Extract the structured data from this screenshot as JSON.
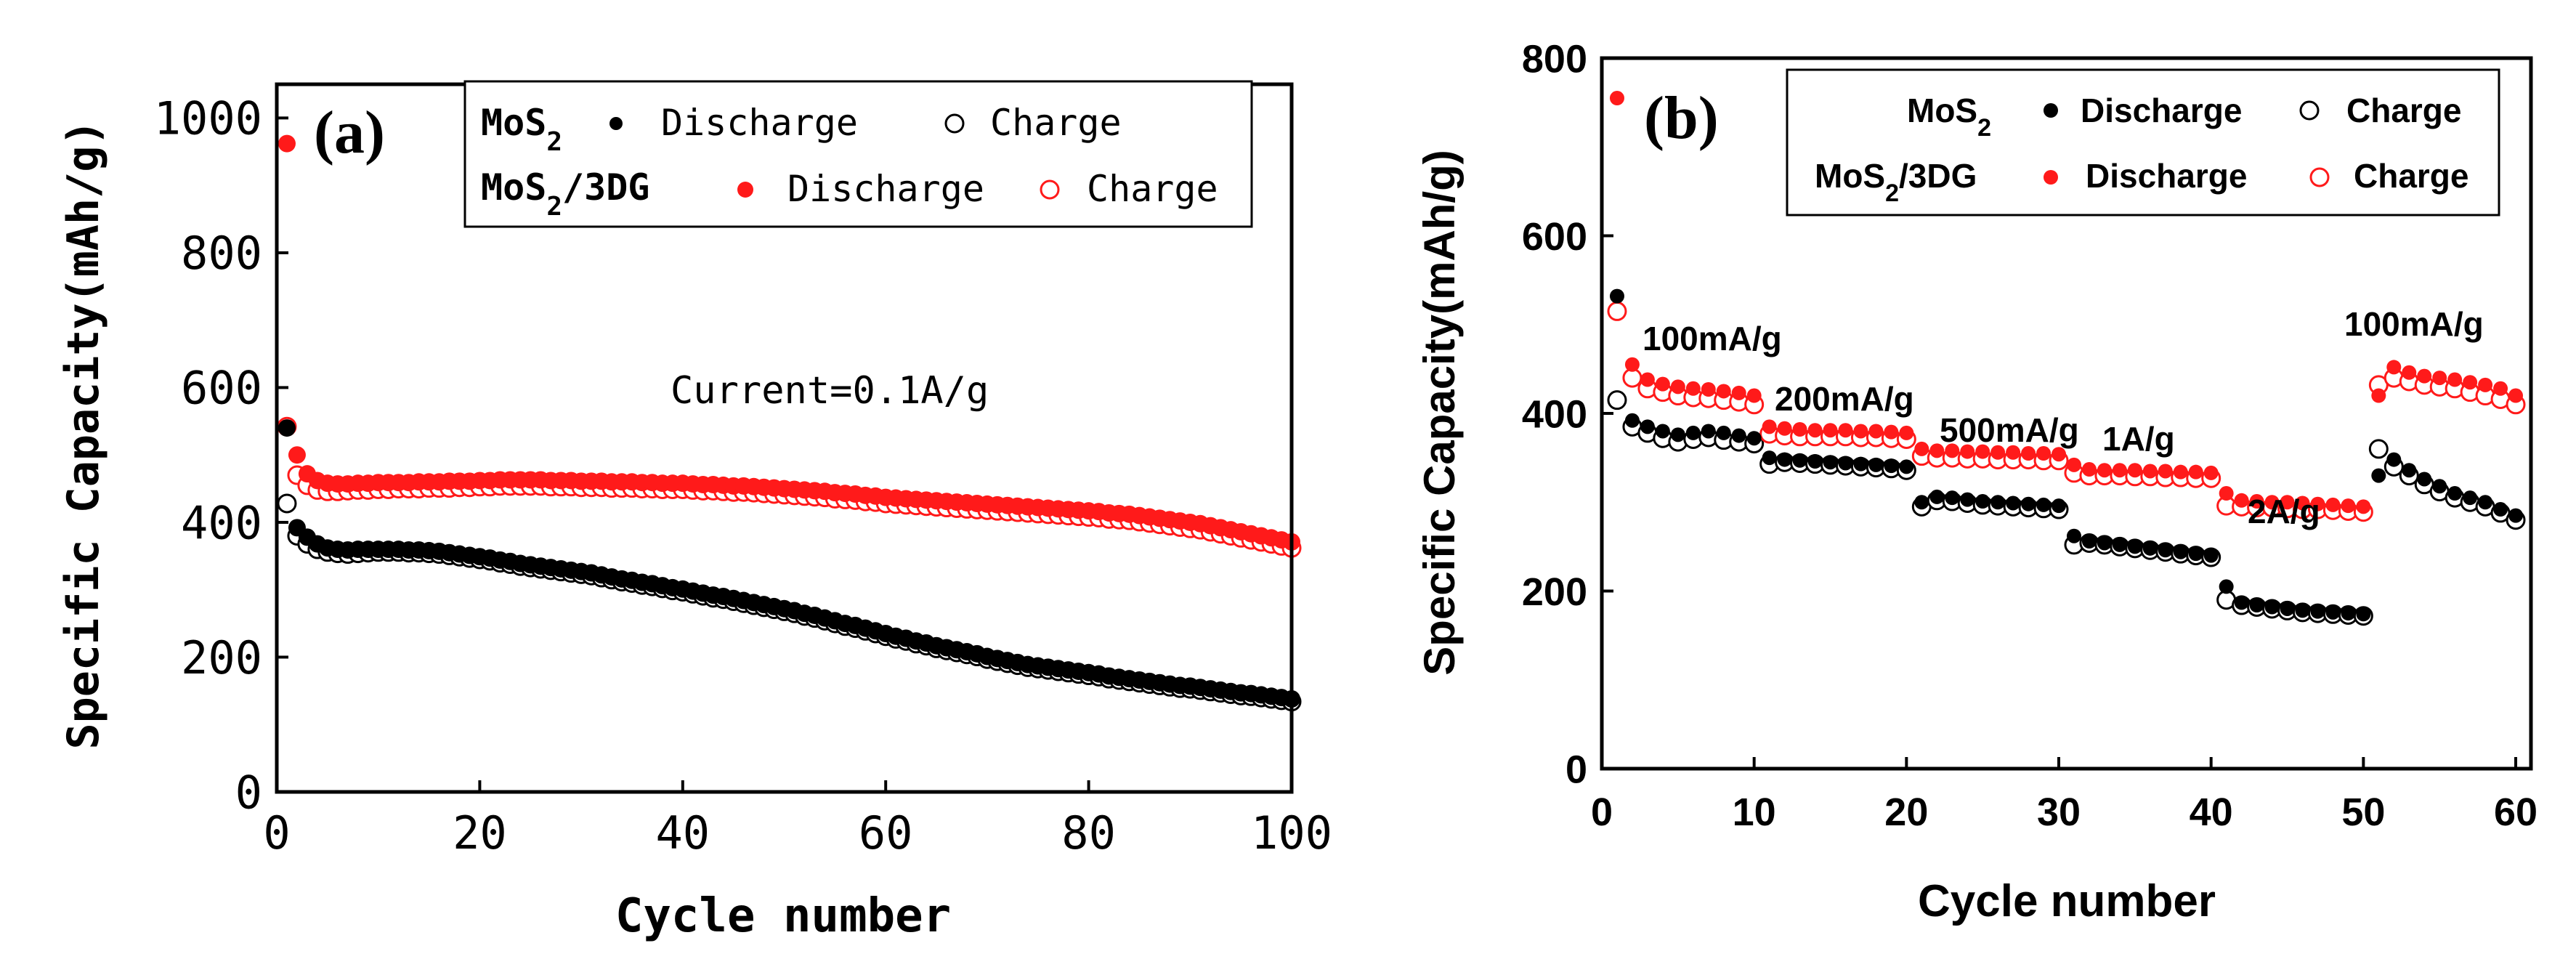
{
  "colors": {
    "mos2": "#000000",
    "mos2_3dg": "#ff1a1a",
    "axis": "#000000"
  },
  "chart_data": [
    {
      "type": "scatter",
      "panel_label": "(a)",
      "xlabel": "Cycle number",
      "ylabel": "Specific Capacity(mAh/g)",
      "xlim": [
        0,
        100
      ],
      "ylim": [
        0,
        1050
      ],
      "xticks": [
        "0",
        "20",
        "40",
        "60",
        "80",
        "100"
      ],
      "yticks": [
        "0",
        "200",
        "400",
        "600",
        "800",
        "1000"
      ],
      "annotations": [
        "Current=0.1A/g"
      ],
      "legend": {
        "placement": "top-right",
        "rows": [
          {
            "material": "MoS",
            "sub": "2",
            "rest": "",
            "discharge": "Discharge",
            "charge": "Charge"
          },
          {
            "material": "MoS",
            "sub": "2",
            "rest": "/3DG",
            "discharge": "Discharge",
            "charge": "Charge"
          }
        ]
      },
      "grid": false,
      "x": [
        1,
        2,
        3,
        4,
        5,
        6,
        7,
        8,
        9,
        10,
        11,
        12,
        13,
        14,
        15,
        16,
        17,
        18,
        19,
        20,
        21,
        22,
        23,
        24,
        25,
        26,
        27,
        28,
        29,
        30,
        31,
        32,
        33,
        34,
        35,
        36,
        37,
        38,
        39,
        40,
        41,
        42,
        43,
        44,
        45,
        46,
        47,
        48,
        49,
        50,
        51,
        52,
        53,
        54,
        55,
        56,
        57,
        58,
        59,
        60,
        61,
        62,
        63,
        64,
        65,
        66,
        67,
        68,
        69,
        70,
        71,
        72,
        73,
        74,
        75,
        76,
        77,
        78,
        79,
        80,
        81,
        82,
        83,
        84,
        85,
        86,
        87,
        88,
        89,
        90,
        91,
        92,
        93,
        94,
        95,
        96,
        97,
        98,
        99,
        100
      ],
      "series": [
        {
          "name": "MoS2 Discharge",
          "material": "MoS2",
          "mode": "discharge",
          "values": [
            540,
            392,
            378,
            368,
            362,
            360,
            359,
            360,
            360,
            360,
            360,
            360,
            359,
            359,
            358,
            357,
            355,
            353,
            351,
            349,
            347,
            344,
            342,
            339,
            337,
            335,
            333,
            331,
            329,
            327,
            325,
            322,
            319,
            316,
            314,
            311,
            309,
            306,
            303,
            301,
            298,
            295,
            292,
            290,
            287,
            284,
            281,
            278,
            275,
            272,
            269,
            265,
            262,
            258,
            254,
            250,
            247,
            243,
            239,
            235,
            231,
            228,
            224,
            221,
            217,
            214,
            211,
            208,
            205,
            201,
            198,
            195,
            192,
            189,
            187,
            185,
            183,
            181,
            179,
            177,
            175,
            172,
            170,
            168,
            166,
            164,
            162,
            160,
            158,
            157,
            155,
            153,
            151,
            149,
            147,
            146,
            144,
            142,
            140,
            138
          ]
        },
        {
          "name": "MoS2 Charge",
          "material": "MoS2",
          "mode": "charge",
          "values": [
            428,
            380,
            368,
            360,
            356,
            354,
            353,
            354,
            355,
            356,
            356,
            356,
            355,
            355,
            354,
            353,
            351,
            349,
            347,
            345,
            343,
            340,
            338,
            335,
            333,
            331,
            329,
            327,
            325,
            323,
            321,
            318,
            315,
            312,
            310,
            307,
            305,
            302,
            299,
            297,
            294,
            291,
            288,
            286,
            283,
            280,
            277,
            274,
            271,
            268,
            265,
            261,
            258,
            254,
            250,
            246,
            243,
            239,
            235,
            231,
            227,
            224,
            220,
            217,
            213,
            210,
            207,
            204,
            201,
            197,
            194,
            191,
            188,
            185,
            183,
            181,
            179,
            177,
            175,
            173,
            171,
            168,
            166,
            164,
            162,
            160,
            158,
            156,
            154,
            153,
            151,
            149,
            147,
            145,
            143,
            142,
            140,
            138,
            136,
            134
          ]
        },
        {
          "name": "MoS2/3DG Discharge",
          "material": "MoS2/3DG",
          "mode": "discharge",
          "values": [
            962,
            500,
            472,
            462,
            458,
            457,
            457,
            458,
            458,
            459,
            459,
            459,
            459,
            460,
            460,
            460,
            461,
            461,
            461,
            462,
            462,
            463,
            463,
            463,
            463,
            463,
            462,
            462,
            462,
            461,
            461,
            461,
            460,
            460,
            460,
            459,
            459,
            458,
            458,
            458,
            457,
            456,
            456,
            455,
            454,
            454,
            453,
            452,
            451,
            450,
            449,
            448,
            447,
            446,
            444,
            443,
            442,
            440,
            439,
            437,
            436,
            435,
            434,
            433,
            432,
            431,
            430,
            429,
            428,
            427,
            426,
            425,
            424,
            423,
            422,
            421,
            420,
            419,
            418,
            417,
            416,
            414,
            413,
            412,
            410,
            408,
            406,
            404,
            402,
            400,
            398,
            395,
            392,
            389,
            386,
            383,
            380,
            377,
            374,
            371
          ]
        },
        {
          "name": "MoS2/3DG Charge",
          "material": "MoS2/3DG",
          "mode": "charge",
          "values": [
            542,
            470,
            455,
            448,
            446,
            446,
            447,
            448,
            448,
            449,
            449,
            450,
            450,
            450,
            451,
            451,
            451,
            452,
            452,
            453,
            453,
            454,
            454,
            454,
            454,
            454,
            453,
            453,
            453,
            452,
            452,
            452,
            451,
            451,
            451,
            450,
            450,
            449,
            449,
            449,
            448,
            447,
            447,
            446,
            445,
            445,
            444,
            443,
            442,
            441,
            440,
            439,
            438,
            437,
            435,
            434,
            433,
            431,
            430,
            428,
            427,
            426,
            425,
            424,
            423,
            422,
            421,
            420,
            419,
            418,
            417,
            416,
            415,
            414,
            413,
            412,
            411,
            410,
            409,
            408,
            407,
            405,
            404,
            403,
            401,
            399,
            397,
            395,
            393,
            391,
            389,
            386,
            383,
            380,
            377,
            374,
            371,
            368,
            365,
            362
          ]
        }
      ]
    },
    {
      "type": "scatter",
      "panel_label": "(b)",
      "xlabel": "Cycle number",
      "ylabel": "Specific Capacity(mAh/g)",
      "xlim": [
        0,
        61
      ],
      "ylim": [
        0,
        800
      ],
      "xticks": [
        "0",
        "10",
        "20",
        "30",
        "40",
        "50",
        "60"
      ],
      "yticks": [
        "0",
        "200",
        "400",
        "600",
        "800"
      ],
      "annotations": [
        "100mA/g",
        "200mA/g",
        "500mA/g",
        "1A/g",
        "2A/g",
        "100mA/g"
      ],
      "legend": {
        "placement": "top-right",
        "rows": [
          {
            "material": "MoS",
            "sub": "2",
            "rest": "",
            "discharge": "Discharge",
            "charge": "Charge"
          },
          {
            "material": "MoS",
            "sub": "2",
            "rest": "/3DG",
            "discharge": "Discharge",
            "charge": "Charge"
          }
        ]
      },
      "grid": false,
      "x": [
        1,
        2,
        3,
        4,
        5,
        6,
        7,
        8,
        9,
        10,
        11,
        12,
        13,
        14,
        15,
        16,
        17,
        18,
        19,
        20,
        21,
        22,
        23,
        24,
        25,
        26,
        27,
        28,
        29,
        30,
        31,
        32,
        33,
        34,
        35,
        36,
        37,
        38,
        39,
        40,
        41,
        42,
        43,
        44,
        45,
        46,
        47,
        48,
        49,
        50,
        51,
        52,
        53,
        54,
        55,
        56,
        57,
        58,
        59,
        60
      ],
      "series": [
        {
          "name": "MoS2 Discharge",
          "material": "MoS2",
          "mode": "discharge",
          "values": [
            532,
            392,
            385,
            380,
            376,
            378,
            380,
            378,
            375,
            372,
            350,
            348,
            347,
            346,
            345,
            344,
            343,
            342,
            341,
            340,
            300,
            306,
            305,
            303,
            301,
            300,
            299,
            298,
            297,
            296,
            262,
            256,
            254,
            252,
            250,
            248,
            246,
            244,
            242,
            240,
            205,
            187,
            184,
            182,
            180,
            178,
            177,
            176,
            175,
            174,
            330,
            348,
            336,
            326,
            318,
            310,
            305,
            300,
            292,
            285
          ]
        },
        {
          "name": "MoS2 Charge",
          "material": "MoS2",
          "mode": "charge",
          "values": [
            415,
            385,
            378,
            372,
            368,
            371,
            373,
            370,
            368,
            366,
            343,
            345,
            344,
            343,
            342,
            341,
            340,
            339,
            338,
            336,
            295,
            302,
            301,
            299,
            297,
            296,
            295,
            294,
            293,
            292,
            252,
            254,
            252,
            250,
            248,
            246,
            244,
            242,
            240,
            238,
            190,
            184,
            182,
            180,
            178,
            176,
            175,
            174,
            173,
            172,
            360,
            340,
            330,
            320,
            312,
            305,
            300,
            295,
            288,
            280
          ]
        },
        {
          "name": "MoS2/3DG Discharge",
          "material": "MoS2/3DG",
          "mode": "discharge",
          "values": [
            755,
            455,
            438,
            433,
            430,
            428,
            427,
            425,
            423,
            420,
            385,
            383,
            382,
            381,
            381,
            381,
            380,
            380,
            379,
            378,
            360,
            358,
            358,
            357,
            357,
            356,
            356,
            355,
            355,
            354,
            342,
            337,
            336,
            336,
            336,
            335,
            335,
            334,
            334,
            333,
            310,
            302,
            301,
            300,
            300,
            299,
            298,
            297,
            296,
            295,
            420,
            452,
            446,
            442,
            440,
            438,
            435,
            432,
            428,
            420
          ]
        },
        {
          "name": "MoS2/3DG Charge",
          "material": "MoS2/3DG",
          "mode": "charge",
          "values": [
            515,
            440,
            428,
            424,
            420,
            418,
            417,
            415,
            413,
            410,
            377,
            375,
            374,
            374,
            374,
            374,
            373,
            373,
            372,
            371,
            352,
            350,
            350,
            349,
            349,
            348,
            348,
            348,
            347,
            347,
            333,
            330,
            330,
            330,
            329,
            329,
            328,
            328,
            327,
            327,
            296,
            295,
            294,
            294,
            293,
            292,
            292,
            291,
            290,
            289,
            432,
            440,
            436,
            432,
            430,
            428,
            424,
            420,
            416,
            410
          ]
        }
      ]
    }
  ]
}
